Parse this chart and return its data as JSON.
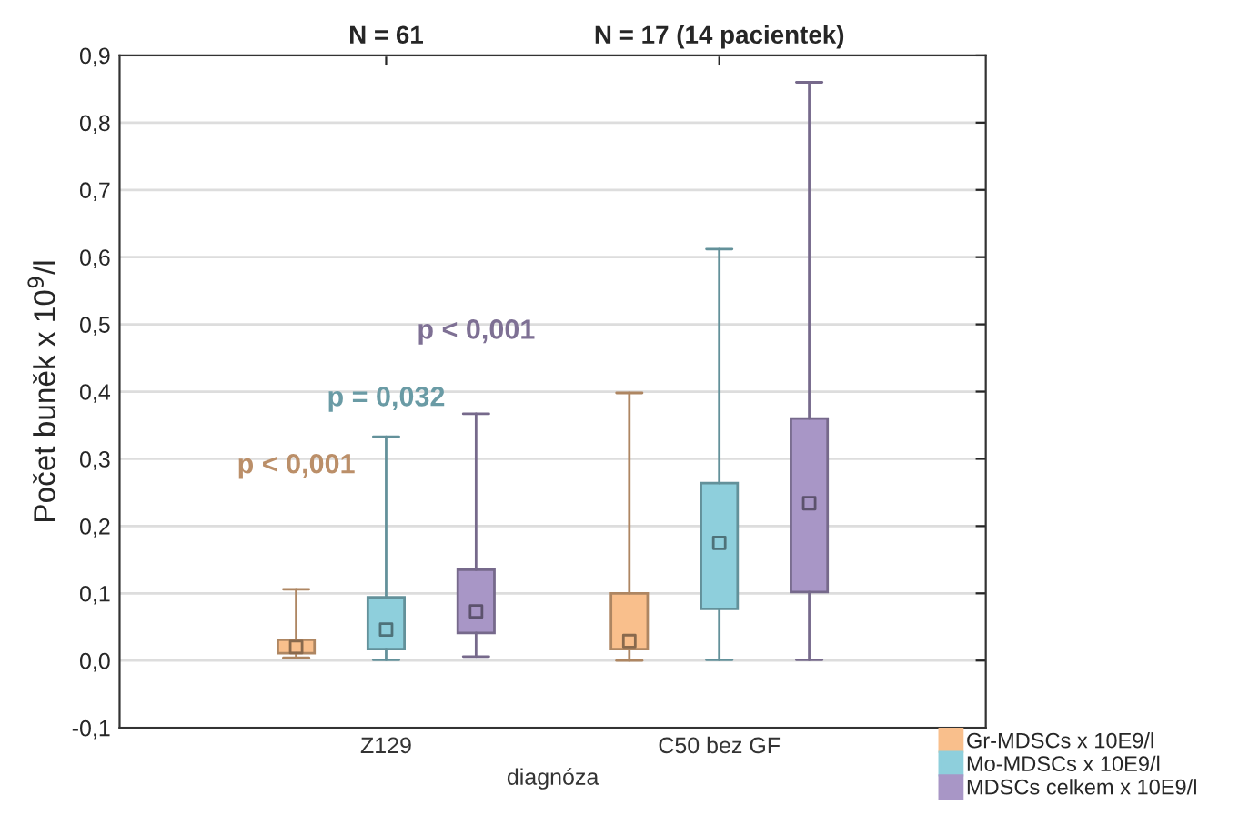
{
  "chart_data": {
    "type": "box",
    "xlabel": "diagnóza",
    "ylabel": "Počet buněk x 10$^{9}$/l",
    "categories": [
      "Z129",
      "C50 bez GF"
    ],
    "series": [
      {
        "name": "Gr-MDSCs x 10E9/l",
        "color": "#f9bf8c",
        "boxes": [
          {
            "low": 0.004,
            "q1": 0.011,
            "median": 0.02,
            "q3": 0.031,
            "high": 0.106
          },
          {
            "low": 0.0,
            "q1": 0.017,
            "median": 0.029,
            "q3": 0.1,
            "high": 0.398
          }
        ]
      },
      {
        "name": "Mo-MDSCs x 10E9/l",
        "color": "#8ecfdc",
        "boxes": [
          {
            "low": 0.001,
            "q1": 0.017,
            "median": 0.046,
            "q3": 0.094,
            "high": 0.333
          },
          {
            "low": 0.001,
            "q1": 0.077,
            "median": 0.175,
            "q3": 0.264,
            "high": 0.612
          }
        ]
      },
      {
        "name": "MDSCs celkem x 10E9/l",
        "color": "#a896c6",
        "boxes": [
          {
            "low": 0.006,
            "q1": 0.041,
            "median": 0.073,
            "q3": 0.135,
            "high": 0.367
          },
          {
            "low": 0.001,
            "q1": 0.102,
            "median": 0.234,
            "q3": 0.36,
            "high": 0.86
          }
        ]
      }
    ],
    "annotations": [
      "p < 0,001",
      "p = 0,032",
      "p < 0,001",
      "N = 61",
      "N = 17 (14 pacientek)"
    ],
    "ylim": [
      -0.1,
      0.9
    ],
    "yticks": [
      {
        "value": -0.1,
        "label": "-0,1"
      },
      {
        "value": 0.0,
        "label": "0,0"
      },
      {
        "value": 0.1,
        "label": "0,1"
      },
      {
        "value": 0.2,
        "label": "0,2"
      },
      {
        "value": 0.3,
        "label": "0,3"
      },
      {
        "value": 0.4,
        "label": "0,4"
      },
      {
        "value": 0.5,
        "label": "0,5"
      },
      {
        "value": 0.6,
        "label": "0,6"
      },
      {
        "value": 0.7,
        "label": "0,7"
      },
      {
        "value": 0.8,
        "label": "0,8"
      },
      {
        "value": 0.9,
        "label": "0,9"
      }
    ],
    "grid": "y",
    "legend": "bottom right",
    "marker": "square"
  }
}
